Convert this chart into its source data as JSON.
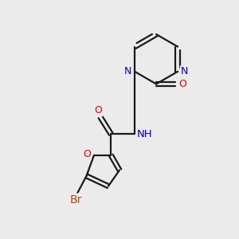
{
  "background_color": "#ebebeb",
  "bond_color": "#1a1a1a",
  "atom_colors": {
    "N": "#0000ee",
    "O": "#ee0000",
    "Br": "#b84c00",
    "C": "#1a1a1a"
  },
  "font_size": 9,
  "fig_size": [
    3.0,
    3.0
  ],
  "dpi": 100
}
